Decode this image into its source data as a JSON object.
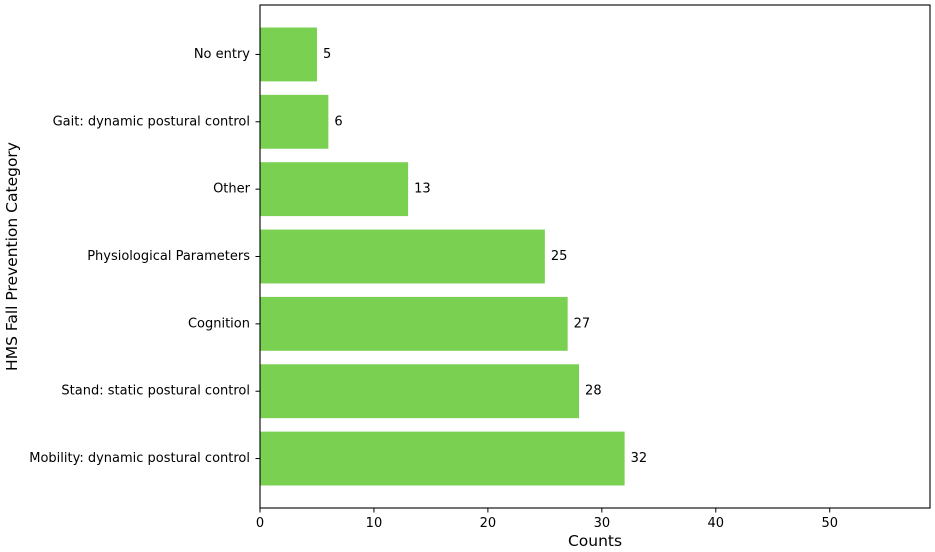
{
  "chart_data": {
    "type": "bar",
    "orientation": "horizontal",
    "categories": [
      "Mobility: dynamic postural control",
      "Stand: static postural control",
      "Cognition",
      "Physiological Parameters",
      "Other",
      "Gait: dynamic postural control",
      "No entry"
    ],
    "values": [
      32,
      28,
      27,
      25,
      13,
      6,
      5
    ],
    "data_labels": [
      "32",
      "28",
      "27",
      "25",
      "13",
      "6",
      "5"
    ],
    "xlabel": "Counts",
    "ylabel": "HMS Fall Prevention Category",
    "xlim": [
      0,
      58.8
    ],
    "xticks": [
      0,
      10,
      20,
      30,
      40,
      50
    ],
    "xtick_labels": [
      "0",
      "10",
      "20",
      "30",
      "40",
      "50"
    ],
    "bar_color": "#7ad151",
    "grid": false,
    "legend": "none"
  }
}
